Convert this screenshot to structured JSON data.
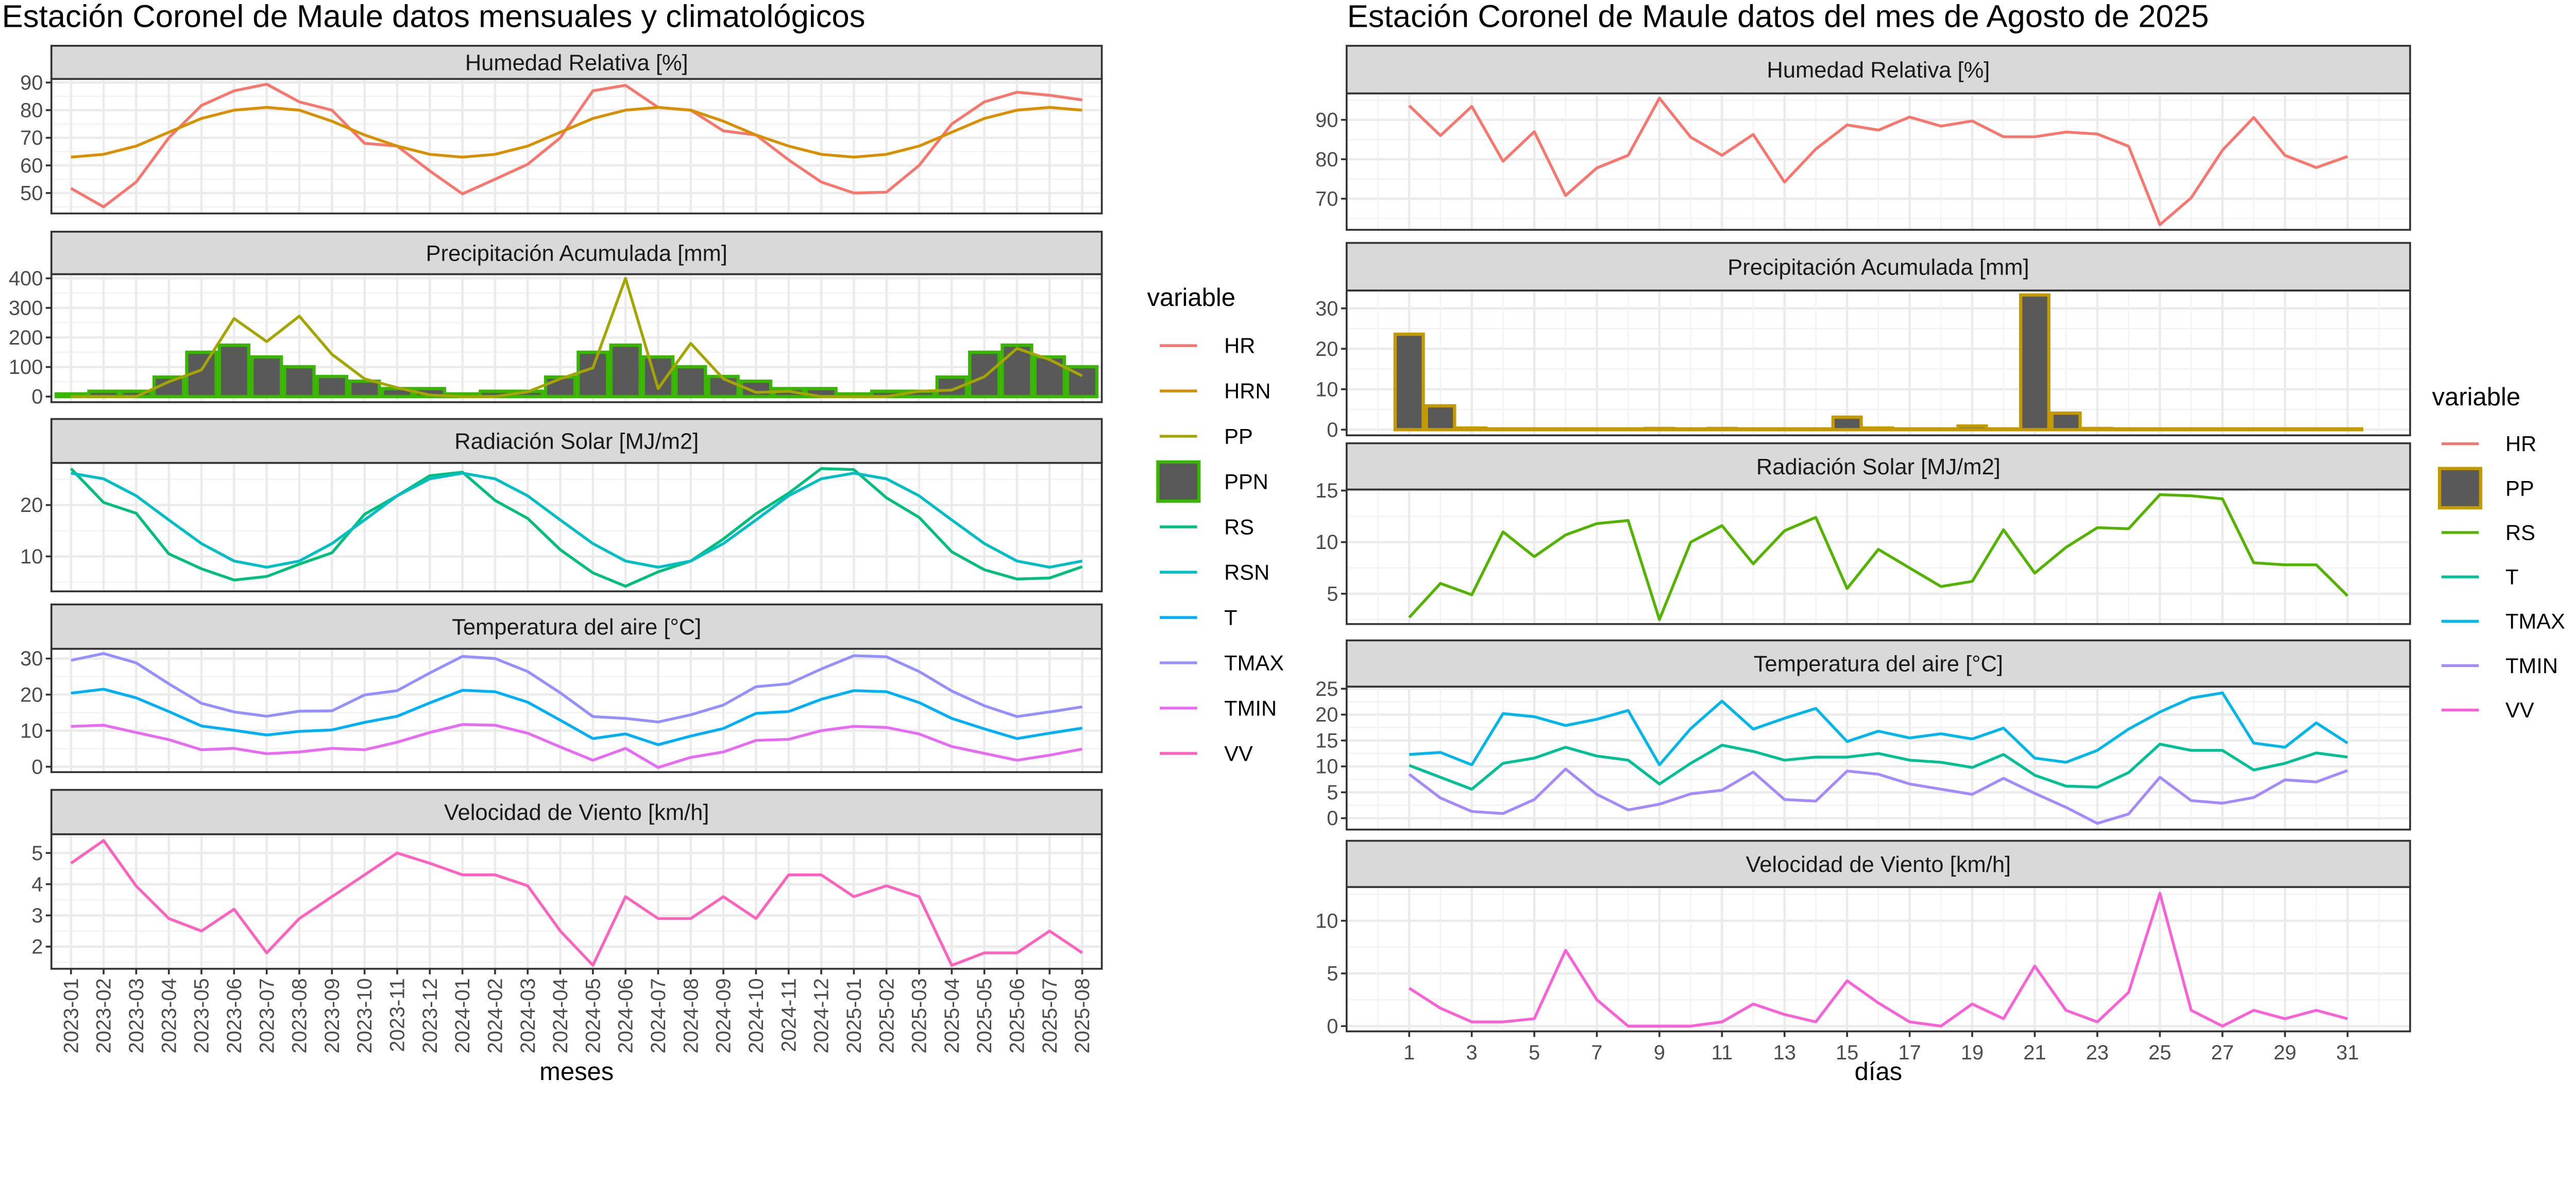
{
  "chart_data": [
    {
      "type": "line",
      "title": "Estación Coronel de Maule datos mensuales y climatológicos",
      "xlabel": "meses",
      "legend_title": "variable",
      "legend_position": "right",
      "grid": true,
      "x": [
        "2023-01",
        "2023-02",
        "2023-03",
        "2023-04",
        "2023-05",
        "2023-06",
        "2023-07",
        "2023-08",
        "2023-09",
        "2023-10",
        "2023-11",
        "2023-12",
        "2024-01",
        "2024-02",
        "2024-03",
        "2024-04",
        "2024-05",
        "2024-06",
        "2024-07",
        "2024-08",
        "2024-09",
        "2024-10",
        "2024-11",
        "2024-12",
        "2025-01",
        "2025-02",
        "2025-03",
        "2025-04",
        "2025-05",
        "2025-06",
        "2025-07",
        "2025-08"
      ],
      "legend": [
        {
          "key": "HR",
          "color": "#F8766D",
          "kind": "line"
        },
        {
          "key": "HRN",
          "color": "#D89000",
          "kind": "line"
        },
        {
          "key": "PP",
          "color": "#A3A500",
          "kind": "line"
        },
        {
          "key": "PPN",
          "color": "#39B600",
          "kind": "bar"
        },
        {
          "key": "RS",
          "color": "#00BF7D",
          "kind": "line"
        },
        {
          "key": "RSN",
          "color": "#00BFC4",
          "kind": "line"
        },
        {
          "key": "T",
          "color": "#00B0F6",
          "kind": "line"
        },
        {
          "key": "TMAX",
          "color": "#9590FF",
          "kind": "line"
        },
        {
          "key": "TMIN",
          "color": "#E76BF3",
          "kind": "line"
        },
        {
          "key": "VV",
          "color": "#FF62BC",
          "kind": "line"
        }
      ],
      "panels": [
        {
          "strip": "Humedad Relativa [%]",
          "ylim": [
            42.6,
            91.3
          ],
          "yticks": [
            50,
            60,
            70,
            80,
            90
          ],
          "series": [
            {
              "name": "HR",
              "color": "#F8766D",
              "values": [
                51.7,
                45,
                54,
                70,
                81.7,
                87,
                89.4,
                83,
                80,
                68,
                67,
                58,
                49.7,
                55,
                60.4,
                70,
                87,
                89,
                81,
                80,
                72.5,
                71,
                62,
                54,
                50,
                50.3,
                60,
                75,
                83,
                86.5,
                85.4,
                83.7
              ]
            },
            {
              "name": "HRN",
              "color": "#D89000",
              "values": [
                63,
                64,
                67,
                72,
                77,
                80,
                81,
                80,
                76,
                71,
                67,
                64,
                63,
                64,
                67,
                72,
                77,
                80,
                81,
                80,
                76,
                71,
                67,
                64,
                63,
                64,
                67,
                72,
                77,
                80,
                81,
                80
              ]
            }
          ]
        },
        {
          "strip": "Precipitación Acumulada [mm]",
          "ylim": [
            -19,
            414
          ],
          "yticks": [
            0,
            100,
            200,
            300,
            400
          ],
          "bars": {
            "name": "PPN",
            "fill": "#595959",
            "color": "#39B600",
            "values": [
              9,
              18,
              18,
              66,
              150,
              174,
              134,
              101,
              68,
              52,
              27,
              27,
              9,
              18,
              18,
              66,
              150,
              174,
              134,
              101,
              68,
              52,
              27,
              27,
              9,
              18,
              18,
              66,
              150,
              174,
              134,
              101
            ]
          },
          "series": [
            {
              "name": "PP",
              "color": "#A3A500",
              "values": [
                0,
                0,
                0,
                50,
                90,
                264,
                186,
                272,
                143,
                60,
                30,
                5,
                0,
                0,
                16,
                60,
                97,
                400,
                27,
                180,
                60,
                14,
                18,
                0,
                0,
                0,
                18,
                22,
                67,
                163,
                125,
                70
              ]
            }
          ]
        },
        {
          "strip": "Radiación Solar [MJ/m2]",
          "ylim": [
            3.2,
            28.2
          ],
          "yticks": [
            10,
            20
          ],
          "series": [
            {
              "name": "RS",
              "color": "#00BF7D",
              "values": [
                27.1,
                20.5,
                18.4,
                10.5,
                7.6,
                5.4,
                6.1,
                8.5,
                10.7,
                18.2,
                21.8,
                25.7,
                26.4,
                20.9,
                17.4,
                11.3,
                6.8,
                4.2,
                7,
                9.1,
                13.4,
                18.3,
                22.3,
                27.1,
                26.9,
                21.4,
                17.6,
                10.9,
                7.4,
                5.6,
                5.8,
                8
              ]
            },
            {
              "name": "RSN",
              "color": "#00BFC4",
              "values": [
                26.2,
                25.1,
                21.8,
                17.1,
                12.5,
                9.1,
                7.9,
                9.1,
                12.5,
                17.1,
                21.8,
                25.1,
                26.2,
                25.1,
                21.8,
                17.1,
                12.5,
                9.1,
                7.9,
                9.1,
                12.5,
                17.1,
                21.8,
                25.1,
                26.2,
                25.1,
                21.8,
                17.1,
                12.5,
                9.1,
                7.9,
                9.1
              ]
            }
          ]
        },
        {
          "strip": "Temperatura del aire [°C]",
          "ylim": [
            -1.5,
            32.7
          ],
          "yticks": [
            0,
            10,
            20,
            30
          ],
          "series": [
            {
              "name": "TMAX",
              "color": "#9590FF",
              "values": [
                29.5,
                31.4,
                28.8,
                23,
                17.6,
                15.2,
                14,
                15.4,
                15.5,
                19.9,
                21.1,
                26,
                30.6,
                30,
                26.4,
                20.5,
                13.9,
                13.4,
                12.4,
                14.4,
                17.1,
                22.2,
                23,
                27.1,
                30.8,
                30.5,
                26.4,
                21,
                16.9,
                13.9,
                15.2,
                16.6
              ]
            },
            {
              "name": "T",
              "color": "#00B0F6",
              "values": [
                20.4,
                21.5,
                19.1,
                15.3,
                11.3,
                10.1,
                8.8,
                9.8,
                10.2,
                12.3,
                14,
                17.7,
                21.2,
                20.8,
                17.9,
                12.9,
                7.8,
                9.1,
                6.1,
                8.5,
                10.6,
                14.8,
                15.3,
                18.7,
                21.1,
                20.8,
                17.8,
                13.4,
                10.5,
                7.8,
                9.3,
                10.7
              ]
            },
            {
              "name": "TMIN",
              "color": "#E76BF3",
              "values": [
                11.2,
                11.5,
                9.5,
                7.5,
                4.7,
                5.1,
                3.6,
                4.1,
                5.1,
                4.7,
                6.8,
                9.5,
                11.7,
                11.5,
                9.3,
                5.5,
                1.8,
                5.1,
                -0.2,
                2.6,
                4.1,
                7.3,
                7.6,
                10,
                11.2,
                10.9,
                9.1,
                5.6,
                3.7,
                1.8,
                3.2,
                4.9
              ]
            }
          ]
        },
        {
          "strip": "Velocidad de Viento [km/h]",
          "ylim": [
            1.29,
            5.6
          ],
          "yticks": [
            2,
            3,
            4,
            5
          ],
          "series": [
            {
              "name": "VV",
              "color": "#FF62BC",
              "values": [
                4.67,
                5.4,
                3.94,
                2.9,
                2.5,
                3.2,
                1.8,
                2.9,
                3.6,
                4.3,
                5.0,
                4.67,
                4.3,
                4.3,
                3.95,
                2.5,
                1.4,
                3.6,
                2.9,
                2.9,
                3.6,
                2.9,
                4.3,
                4.3,
                3.6,
                3.95,
                3.6,
                1.4,
                1.8,
                1.8,
                2.5,
                1.8
              ]
            }
          ]
        }
      ]
    },
    {
      "type": "line",
      "title": "Estación Coronel de Maule datos del mes de Agosto de 2025",
      "xlabel": "días",
      "legend_title": "variable",
      "legend_position": "right",
      "grid": true,
      "x": [
        1,
        2,
        3,
        4,
        5,
        6,
        7,
        8,
        9,
        10,
        11,
        12,
        13,
        14,
        15,
        16,
        17,
        18,
        19,
        20,
        21,
        22,
        23,
        24,
        25,
        26,
        27,
        28,
        29,
        30,
        31
      ],
      "xticks": [
        "1",
        "3",
        "5",
        "7",
        "9",
        "11",
        "13",
        "15",
        "17",
        "19",
        "21",
        "23",
        "25",
        "27",
        "29",
        "31"
      ],
      "legend": [
        {
          "key": "HR",
          "color": "#F8766D",
          "kind": "line"
        },
        {
          "key": "PP",
          "color": "#C49A00",
          "kind": "bar"
        },
        {
          "key": "RS",
          "color": "#53B400",
          "kind": "line"
        },
        {
          "key": "T",
          "color": "#00C094",
          "kind": "line"
        },
        {
          "key": "TMAX",
          "color": "#00B6EB",
          "kind": "line"
        },
        {
          "key": "TMIN",
          "color": "#A58AFF",
          "kind": "line"
        },
        {
          "key": "VV",
          "color": "#FB61D7",
          "kind": "line"
        }
      ],
      "panels": [
        {
          "strip": "Humedad Relativa [%]",
          "ylim": [
            62.1,
            96.7
          ],
          "yticks": [
            70,
            80,
            90
          ],
          "series": [
            {
              "name": "HR",
              "color": "#F8766D",
              "values": [
                93.6,
                86,
                93.4,
                79.5,
                87,
                70.8,
                77.8,
                81,
                95.5,
                85.6,
                81,
                86.3,
                74.2,
                82.6,
                88.7,
                87.4,
                90.7,
                88.4,
                89.7,
                85.7,
                85.7,
                86.9,
                86.4,
                83.3,
                63.4,
                70.2,
                82.3,
                90.6,
                81,
                77.9,
                80.7
              ]
            }
          ]
        },
        {
          "strip": "Precipitación Acumulada [mm]",
          "ylim": [
            -1.4,
            34.4
          ],
          "yticks": [
            0,
            10,
            20,
            30
          ],
          "bars": {
            "name": "PP",
            "fill": "#595959",
            "color": "#C49A00",
            "values": [
              23.6,
              5.9,
              0.4,
              0.2,
              0.2,
              0.2,
              0.2,
              0.2,
              0.3,
              0.2,
              0.3,
              0.2,
              0.2,
              0.2,
              3.1,
              0.4,
              0.2,
              0.2,
              0.9,
              0.2,
              33.3,
              4.1,
              0.3,
              0.2,
              0.2,
              0.2,
              0.2,
              0.2,
              0.2,
              0.2,
              0.2
            ]
          },
          "series": []
        },
        {
          "strip": "Radiación Solar [MJ/m2]",
          "ylim": [
            2.06,
            15.1
          ],
          "yticks": [
            5,
            10,
            15
          ],
          "series": [
            {
              "name": "RS",
              "color": "#53B400",
              "values": [
                2.7,
                6,
                4.9,
                11,
                8.6,
                10.7,
                11.8,
                12.1,
                2.5,
                10,
                11.6,
                7.9,
                11.1,
                12.4,
                5.5,
                9.3,
                7.5,
                5.7,
                6.2,
                11.2,
                7,
                9.5,
                11.4,
                11.3,
                14.6,
                14.5,
                14.2,
                8,
                7.8,
                7.8,
                4.8
              ]
            }
          ]
        },
        {
          "strip": "Temperatura del aire [°C]",
          "ylim": [
            -2.2,
            25.4
          ],
          "yticks": [
            0,
            5,
            10,
            15,
            20,
            25
          ],
          "series": [
            {
              "name": "TMAX",
              "color": "#00B6EB",
              "values": [
                12.3,
                12.7,
                10.3,
                20.2,
                19.6,
                17.9,
                19.1,
                20.8,
                10.3,
                17.3,
                22.6,
                17.2,
                19.3,
                21.2,
                14.8,
                16.8,
                15.5,
                16.3,
                15.3,
                17.4,
                11.6,
                10.8,
                13.1,
                17.2,
                20.5,
                23.2,
                24.2,
                14.5,
                13.7,
                18.4,
                14.5
              ]
            },
            {
              "name": "T",
              "color": "#00C094",
              "values": [
                10.2,
                7.9,
                5.6,
                10.6,
                11.6,
                13.7,
                12,
                11.2,
                6.6,
                10.6,
                14.1,
                12.9,
                11.2,
                11.8,
                11.8,
                12.5,
                11.2,
                10.8,
                9.8,
                12.3,
                8.3,
                6.2,
                6,
                8.8,
                14.3,
                13.1,
                13.1,
                9.3,
                10.6,
                12.6,
                11.8
              ]
            },
            {
              "name": "TMIN",
              "color": "#A58AFF",
              "values": [
                8.5,
                3.9,
                1.3,
                0.9,
                3.6,
                9.5,
                4.6,
                1.6,
                2.7,
                4.7,
                5.4,
                8.9,
                3.6,
                3.3,
                9.1,
                8.5,
                6.6,
                5.6,
                4.6,
                7.7,
                4.8,
                2.1,
                -1,
                0.8,
                7.9,
                3.4,
                2.9,
                4,
                7.4,
                7,
                9.2
              ]
            }
          ]
        },
        {
          "strip": "Velocidad de Viento [km/h]",
          "ylim": [
            -0.5,
            13.2
          ],
          "yticks": [
            0,
            5,
            10
          ],
          "series": [
            {
              "name": "VV",
              "color": "#FB61D7",
              "values": [
                3.6,
                1.7,
                0.4,
                0.4,
                0.7,
                7.2,
                2.5,
                0,
                0,
                0,
                0.4,
                2.1,
                1.1,
                0.4,
                4.3,
                2.2,
                0.4,
                0,
                2.1,
                0.7,
                5.7,
                1.5,
                0.4,
                3.2,
                12.6,
                1.5,
                0,
                1.5,
                0.7,
                1.5,
                0.7
              ]
            }
          ]
        }
      ]
    }
  ]
}
